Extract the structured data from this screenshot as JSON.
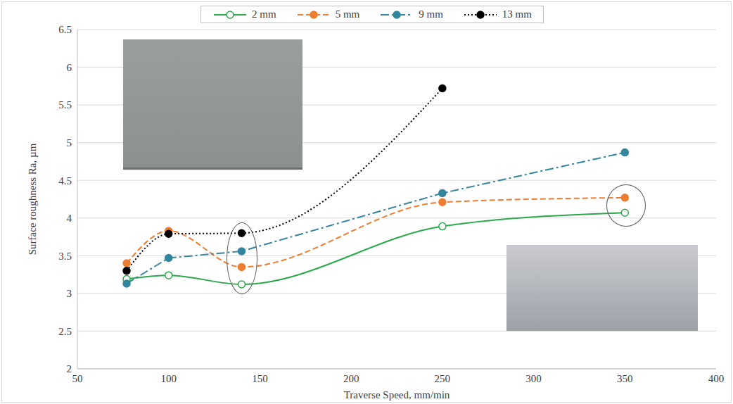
{
  "chart_data": {
    "type": "line",
    "x_label": "Traverse Speed, mm/min",
    "y_label": "Surface roughness Ra, µm",
    "x": [
      77,
      100,
      140,
      250,
      350
    ],
    "series": [
      {
        "name": "2 mm",
        "color": "#2aa84a",
        "marker": "open_circle",
        "line_style": "solid",
        "values": [
          3.19,
          3.24,
          3.12,
          3.89,
          4.07
        ]
      },
      {
        "name": "5 mm",
        "color": "#ed7d31",
        "marker": "circle",
        "line_style": "dashed",
        "values": [
          3.4,
          3.83,
          3.35,
          4.21,
          4.27
        ]
      },
      {
        "name": "9 mm",
        "color": "#31859c",
        "marker": "circle",
        "line_style": "dashdot",
        "values": [
          3.13,
          3.47,
          3.56,
          4.33,
          4.87
        ]
      },
      {
        "name": "13 mm",
        "color": "#000000",
        "marker": "circle",
        "line_style": "dotted",
        "values": [
          3.3,
          3.79,
          3.8,
          5.72,
          null
        ]
      }
    ],
    "xlim": [
      50,
      400
    ],
    "xticks": [
      50,
      100,
      150,
      200,
      250,
      300,
      350,
      400
    ],
    "ylim": [
      2,
      6.5
    ],
    "yticks": [
      2,
      2.5,
      3,
      3.5,
      4,
      4.5,
      5,
      5.5,
      6,
      6.5
    ],
    "grid": true,
    "legend": "top"
  }
}
